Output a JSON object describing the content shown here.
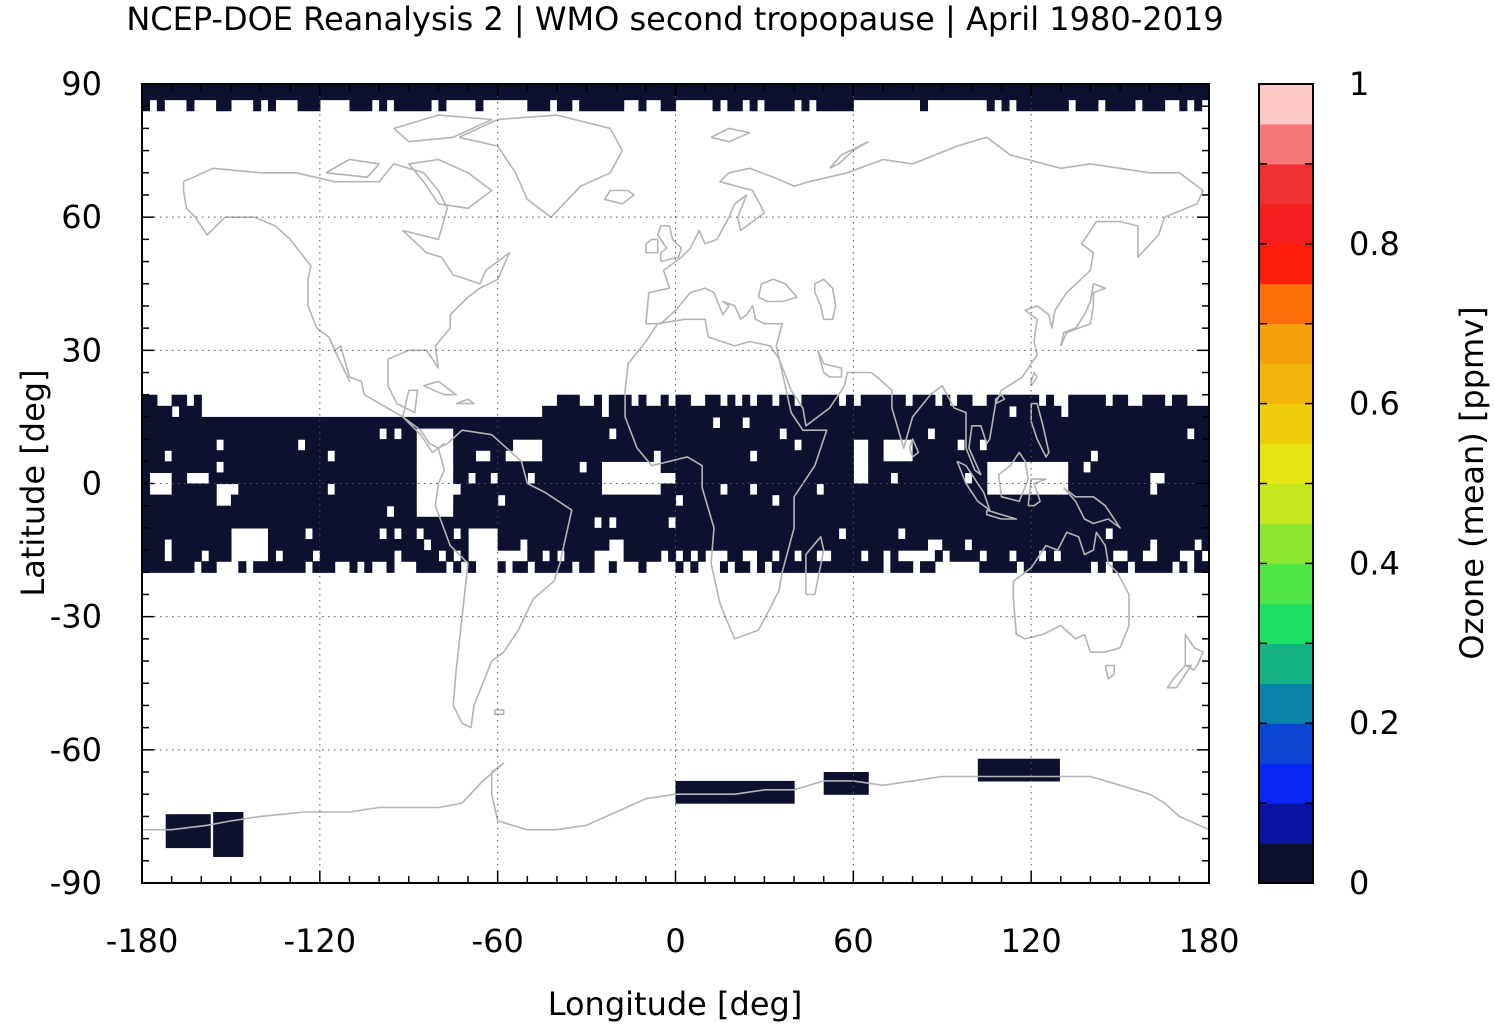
{
  "chart_data": {
    "type": "heatmap",
    "title": "NCEP-DOE Reanalysis 2 | WMO second tropopause | April 1980-2019",
    "xlabel": "Longitude [deg]",
    "ylabel": "Latitude [deg]",
    "xlim": [
      -180,
      180
    ],
    "ylim": [
      -90,
      90
    ],
    "x_ticks": [
      "-180",
      "-120",
      "-60",
      "0",
      "60",
      "120",
      "180"
    ],
    "y_ticks": [
      "90",
      "60",
      "30",
      "0",
      "-30",
      "-60",
      "-90"
    ],
    "grid": true,
    "basemap": "coastlines",
    "data_color": "#0e1030",
    "colorbar": {
      "label": "Ozone (mean) [ppmv]",
      "range": [
        0,
        1
      ],
      "ticks": [
        "0",
        "0.2",
        "0.4",
        "0.6",
        "0.8",
        "1"
      ],
      "colors": [
        "#0e1030",
        "#0a14a0",
        "#0a28f5",
        "#0a46d2",
        "#0a82aa",
        "#14b482",
        "#1ee164",
        "#50e646",
        "#8ce632",
        "#c8e61e",
        "#e6e614",
        "#f0cd0a",
        "#f5b40a",
        "#f5a00a",
        "#ff6e0a",
        "#ff1e0a",
        "#f51e1e",
        "#f03232",
        "#f57878",
        "#ffc8c8"
      ]
    },
    "regions": [
      {
        "name": "arctic-band",
        "lon": [
          -180,
          180
        ],
        "lat": [
          84,
          90
        ]
      },
      {
        "name": "tropical-band",
        "lon": [
          -180,
          180
        ],
        "lat": [
          -20,
          20
        ]
      },
      {
        "name": "antarctic-patch-1",
        "lon": [
          -172,
          -158
        ],
        "lat": [
          -82,
          -76
        ]
      },
      {
        "name": "antarctic-patch-2",
        "lon": [
          -156,
          -147
        ],
        "lat": [
          -84,
          -76
        ]
      },
      {
        "name": "antarctic-patch-3",
        "lon": [
          0,
          40
        ],
        "lat": [
          -72,
          -69
        ]
      },
      {
        "name": "antarctic-patch-4",
        "lon": [
          50,
          65
        ],
        "lat": [
          -70,
          -67
        ]
      },
      {
        "name": "antarctic-patch-5",
        "lon": [
          102,
          128
        ],
        "lat": [
          -67,
          -63
        ]
      }
    ]
  }
}
